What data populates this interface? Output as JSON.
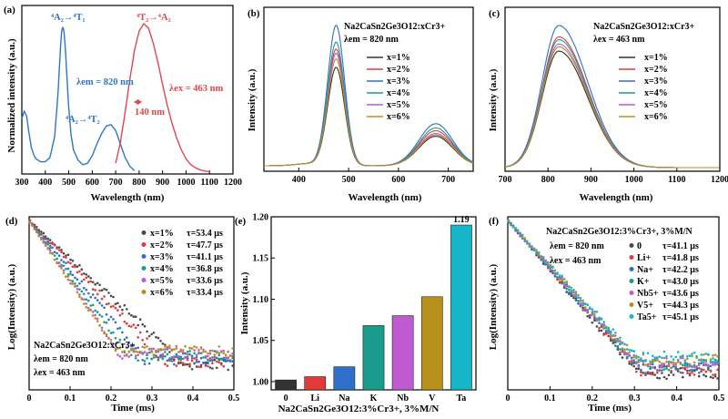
{
  "chart_data": [
    {
      "panel": "(a)",
      "type": "line",
      "xlabel": "Wavelength (nm)",
      "ylabel": "Normalized intensity (a.u.)",
      "xlim": [
        300,
        1200
      ],
      "xticks": [
        "300",
        "400",
        "500",
        "600",
        "700",
        "800",
        "900",
        "1000",
        "1100",
        "1200"
      ],
      "series": [
        {
          "name": "excitation (λem = 820 nm)",
          "color": "#2e75c8",
          "x": [
            300,
            310,
            320,
            330,
            340,
            350,
            360,
            380,
            400,
            420,
            440,
            455,
            465,
            470,
            475,
            480,
            485,
            490,
            500,
            510,
            520,
            540,
            560,
            580,
            600,
            620,
            640,
            660,
            680,
            700,
            720,
            740,
            760,
            780
          ],
          "y": [
            0.36,
            0.41,
            0.38,
            0.27,
            0.17,
            0.12,
            0.09,
            0.07,
            0.07,
            0.1,
            0.24,
            0.55,
            0.85,
            0.95,
            0.98,
            0.94,
            0.85,
            0.7,
            0.43,
            0.25,
            0.15,
            0.08,
            0.05,
            0.06,
            0.11,
            0.19,
            0.26,
            0.31,
            0.32,
            0.28,
            0.19,
            0.1,
            0.04,
            0.01
          ]
        },
        {
          "name": "emission (λex = 463 nm)",
          "color": "#e0474c",
          "x": [
            700,
            720,
            740,
            760,
            780,
            800,
            820,
            840,
            860,
            880,
            900,
            920,
            940,
            960,
            980,
            1000,
            1020,
            1040,
            1060,
            1080,
            1100
          ],
          "y": [
            0.06,
            0.2,
            0.4,
            0.62,
            0.82,
            0.95,
            1.0,
            0.97,
            0.87,
            0.74,
            0.59,
            0.45,
            0.33,
            0.23,
            0.15,
            0.09,
            0.05,
            0.03,
            0.015,
            0.008,
            0.003
          ]
        }
      ],
      "annotations": {
        "excitation_1": "⁴A₂→⁴T₁",
        "excitation_2": "⁴A₂→⁴T₂",
        "emission": "⁴T₂→⁴A₂",
        "lambda_em": "λem = 820 nm",
        "lambda_ex": "λex = 463 nm",
        "shift": "140 nm"
      },
      "colors": {
        "blue": "#2e75c8",
        "red": "#e0474c"
      }
    },
    {
      "panel": "(b)",
      "type": "line",
      "title_line1": "Na2CaSn2Ge3O12:xCr3+",
      "title_line2": "λem = 820 nm",
      "xlabel": "Wavelength (nm)",
      "ylabel": "Intensity (a.u.)",
      "xlim": [
        330,
        750
      ],
      "xticks": [
        "400",
        "500",
        "600",
        "700"
      ],
      "peaks": {
        "x1": 475,
        "x2": 675
      },
      "series": [
        {
          "name": "x=1%",
          "color": "#333333",
          "peak1": 0.7,
          "peak2": 0.21
        },
        {
          "name": "x=2%",
          "color": "#e03b3b",
          "peak1": 0.83,
          "peak2": 0.25
        },
        {
          "name": "x=3%",
          "color": "#2f6fc9",
          "peak1": 1.0,
          "peak2": 0.3
        },
        {
          "name": "x=4%",
          "color": "#1a9c8c",
          "peak1": 0.88,
          "peak2": 0.27
        },
        {
          "name": "x=5%",
          "color": "#c05ad0",
          "peak1": 0.8,
          "peak2": 0.23
        },
        {
          "name": "x=6%",
          "color": "#b8901c",
          "peak1": 0.76,
          "peak2": 0.22
        }
      ]
    },
    {
      "panel": "(c)",
      "type": "line",
      "title_line1": "Na2CaSn2Ge3O12:xCr3+",
      "title_line2": "λex = 463 nm",
      "xlabel": "Wavelength (nm)",
      "ylabel": "Intensity (a.u.)",
      "xlim": [
        700,
        1200
      ],
      "xticks": [
        "700",
        "800",
        "900",
        "1000",
        "1100",
        "1200"
      ],
      "peak_x": 825,
      "series": [
        {
          "name": "x=1%",
          "color": "#333333",
          "peak": 0.82
        },
        {
          "name": "x=2%",
          "color": "#e03b3b",
          "peak": 0.92
        },
        {
          "name": "x=3%",
          "color": "#2f6fc9",
          "peak": 1.0
        },
        {
          "name": "x=4%",
          "color": "#1a9c8c",
          "peak": 0.9
        },
        {
          "name": "x=5%",
          "color": "#c05ad0",
          "peak": 0.87
        },
        {
          "name": "x=6%",
          "color": "#b8901c",
          "peak": 0.85
        }
      ]
    },
    {
      "panel": "(d)",
      "type": "scatter",
      "xlabel": "Time (ms)",
      "ylabel": "Log(Intensity) (a.u.)",
      "xlim": [
        0,
        0.5
      ],
      "xticks": [
        "0",
        "0.1",
        "0.2",
        "0.3",
        "0.4",
        "0.5"
      ],
      "inset": [
        "Na2CaSn2Ge3O12:xCr3+",
        "λem = 820 nm",
        "λex = 463 nm"
      ],
      "series": [
        {
          "name": "x=1%",
          "tau_label": "τ=53.4 μs",
          "tau": 53.4,
          "color": "#4a4a4a"
        },
        {
          "name": "x=2%",
          "tau_label": "τ=47.7 μs",
          "tau": 47.7,
          "color": "#e03b3b"
        },
        {
          "name": "x=3%",
          "tau_label": "τ=41.1 μs",
          "tau": 41.1,
          "color": "#2f6fc9"
        },
        {
          "name": "x=4%",
          "tau_label": "τ=36.8 μs",
          "tau": 36.8,
          "color": "#1a9c8c"
        },
        {
          "name": "x=5%",
          "tau_label": "τ=33.6 μs",
          "tau": 33.6,
          "color": "#c05ad0"
        },
        {
          "name": "x=6%",
          "tau_label": "τ=33.4 μs",
          "tau": 33.4,
          "color": "#b8901c"
        }
      ]
    },
    {
      "panel": "(e)",
      "type": "bar",
      "xlabel": "Na2CaSn2Ge3O12:3%Cr3+, 3%M/N",
      "ylabel": "Intensity (a.u.)",
      "ylim": [
        0.99,
        1.2
      ],
      "yticks": [
        "1.00",
        "1.05",
        "1.10",
        "1.15",
        "1.20"
      ],
      "categories": [
        "0",
        "Li",
        "Na",
        "K",
        "Nb",
        "V",
        "Ta"
      ],
      "values": [
        1.002,
        1.006,
        1.018,
        1.068,
        1.08,
        1.103,
        1.19
      ],
      "colors": [
        "#333333",
        "#e03b3b",
        "#2f6fc9",
        "#1a9c8c",
        "#c05ad0",
        "#b8901c",
        "#17b5c8"
      ],
      "top_label": "1.19"
    },
    {
      "panel": "(f)",
      "type": "scatter",
      "title": "Na2CaSn2Ge3O12:3%Cr3+, 3%M/N",
      "xlabel": "Time (ms)",
      "ylabel": "Log(Intensity) (a.u.)",
      "xlim": [
        0,
        0.5
      ],
      "xticks": [
        "0",
        "0.1",
        "0.2",
        "0.3",
        "0.4",
        "0.5"
      ],
      "inset": [
        "λem = 820 nm",
        "λex = 463 nm"
      ],
      "series": [
        {
          "name": "0",
          "tau_label": "τ=41.1 μs",
          "tau": 41.1,
          "color": "#4a4a4a"
        },
        {
          "name": "Li+",
          "tau_label": "τ=41.8 μs",
          "tau": 41.8,
          "color": "#e03b3b"
        },
        {
          "name": "Na+",
          "tau_label": "τ=42.2 μs",
          "tau": 42.2,
          "color": "#2f6fc9"
        },
        {
          "name": "K+",
          "tau_label": "τ=43.0 μs",
          "tau": 43.0,
          "color": "#1a9c8c"
        },
        {
          "name": "Nb5+",
          "tau_label": "τ=43.6 μs",
          "tau": 43.6,
          "color": "#c05ad0"
        },
        {
          "name": "V5+",
          "tau_label": "τ=44.3 μs",
          "tau": 44.3,
          "color": "#b8901c"
        },
        {
          "name": "Ta5+",
          "tau_label": "τ=45.1 μs",
          "tau": 45.1,
          "color": "#17b5c8"
        }
      ]
    }
  ]
}
